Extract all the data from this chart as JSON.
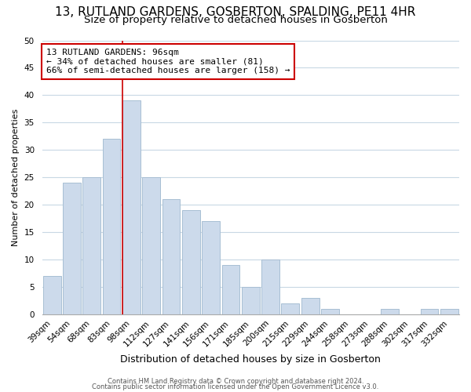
{
  "title": "13, RUTLAND GARDENS, GOSBERTON, SPALDING, PE11 4HR",
  "subtitle": "Size of property relative to detached houses in Gosberton",
  "xlabel": "Distribution of detached houses by size in Gosberton",
  "ylabel": "Number of detached properties",
  "footer_line1": "Contains HM Land Registry data © Crown copyright and database right 2024.",
  "footer_line2": "Contains public sector information licensed under the Open Government Licence v3.0.",
  "categories": [
    "39sqm",
    "54sqm",
    "68sqm",
    "83sqm",
    "98sqm",
    "112sqm",
    "127sqm",
    "141sqm",
    "156sqm",
    "171sqm",
    "185sqm",
    "200sqm",
    "215sqm",
    "229sqm",
    "244sqm",
    "258sqm",
    "273sqm",
    "288sqm",
    "302sqm",
    "317sqm",
    "332sqm"
  ],
  "values": [
    7,
    24,
    25,
    32,
    39,
    25,
    21,
    19,
    17,
    9,
    5,
    10,
    2,
    3,
    1,
    0,
    0,
    1,
    0,
    1,
    1
  ],
  "bar_color": "#ccdaeb",
  "bar_edge_color": "#a8bfd4",
  "highlight_line_color": "#cc0000",
  "annotation_title": "13 RUTLAND GARDENS: 96sqm",
  "annotation_line1": "← 34% of detached houses are smaller (81)",
  "annotation_line2": "66% of semi-detached houses are larger (158) →",
  "annotation_box_edge_color": "#cc0000",
  "annotation_box_face_color": "#ffffff",
  "ylim": [
    0,
    50
  ],
  "yticks": [
    0,
    5,
    10,
    15,
    20,
    25,
    30,
    35,
    40,
    45,
    50
  ],
  "background_color": "#ffffff",
  "grid_color": "#c8d8e4",
  "title_fontsize": 11,
  "subtitle_fontsize": 9.5,
  "xlabel_fontsize": 9,
  "ylabel_fontsize": 8,
  "tick_fontsize": 7.5,
  "annotation_fontsize": 8,
  "footer_fontsize": 6
}
